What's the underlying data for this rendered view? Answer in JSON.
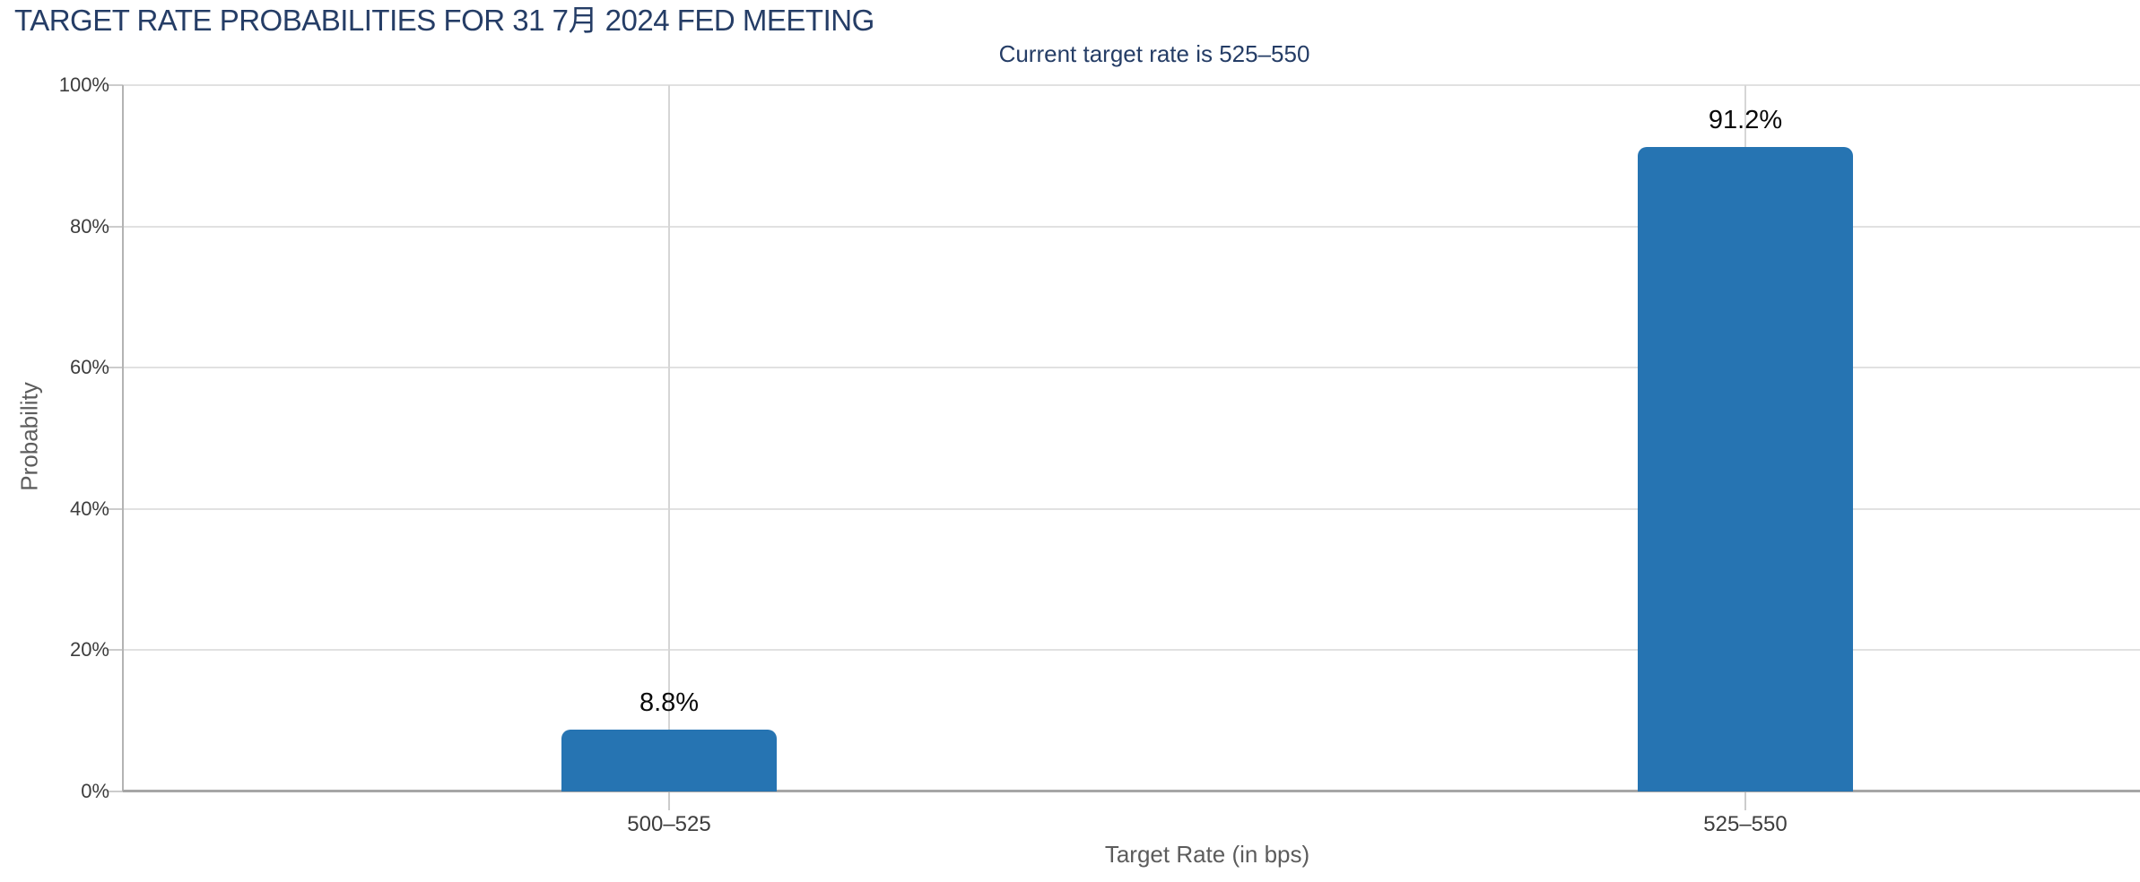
{
  "page": {
    "title": "TARGET RATE PROBABILITIES FOR 31 7月 2024 FED MEETING",
    "subtitle": "Current target rate is 525–550"
  },
  "chart_data": {
    "type": "bar",
    "title": "TARGET RATE PROBABILITIES FOR 31 7月 2024 FED MEETING",
    "subtitle": "Current target rate is 525–550",
    "categories": [
      "500–525",
      "525–550"
    ],
    "values": [
      8.8,
      91.2
    ],
    "value_labels": [
      "8.8%",
      "91.2%"
    ],
    "xlabel": "Target Rate (in bps)",
    "ylabel": "Probability",
    "yticks": [
      0,
      20,
      40,
      60,
      80,
      100
    ],
    "ytick_labels": [
      "0%",
      "20%",
      "40%",
      "60%",
      "80%",
      "100%"
    ],
    "ylim": [
      0,
      100
    ],
    "grid": true,
    "legend_position": "none",
    "colors": {
      "bar": "#2674b2",
      "title_text": "#253d66",
      "axis_text": "#3d3d3d",
      "axis_title_text": "#5c5c5c",
      "h_gridline": "#e1e1e1",
      "v_gridline": "#d6d6d6",
      "y_axis_line": "#b3b3b3",
      "x_axis_line": "#a6a6a6",
      "value_label_text": "#0a0a0a",
      "background": "#ffffff"
    }
  }
}
